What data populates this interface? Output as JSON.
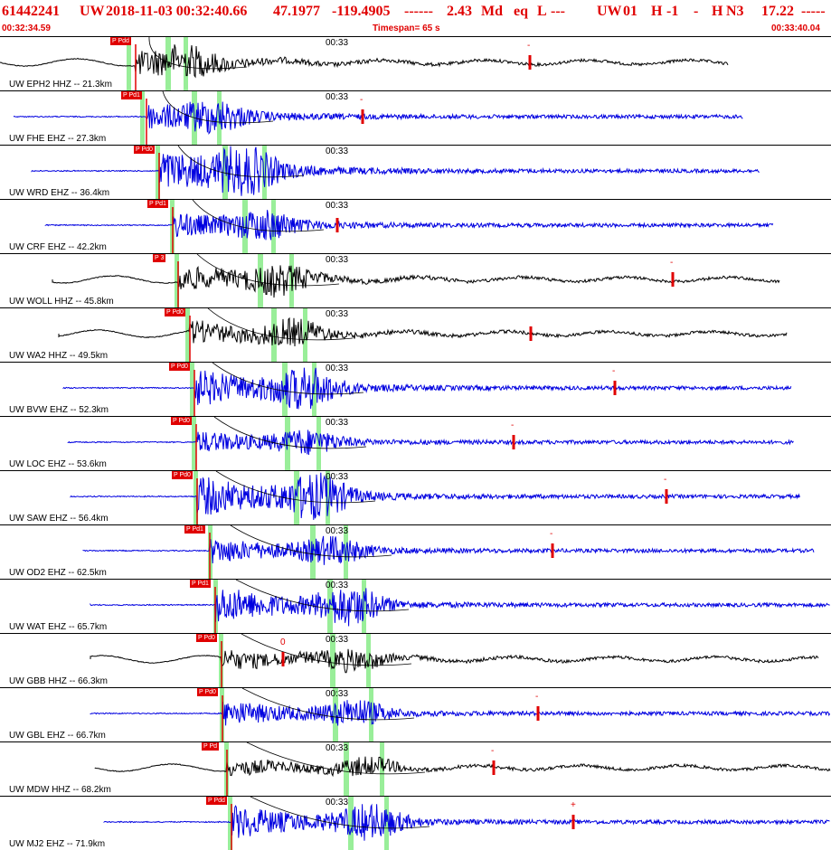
{
  "header": {
    "event_id": "61442241",
    "network": "UW",
    "origin_time": "2018-11-03 00:32:40.66",
    "latitude": "47.1977",
    "longitude": "-119.4905",
    "sep1": "------",
    "magnitude": "2.43",
    "mag_type": "Md",
    "event_type": "eq",
    "geo_type": "L",
    "sep2": "---",
    "source": "UW",
    "version": "01",
    "quality": "H",
    "flag": "-1",
    "sep3": "-",
    "grade": "H",
    "phase_code": "N3",
    "depth": "17.22",
    "sep4": "-----",
    "start_time": "00:32:34.59",
    "timespan": "Timespan=  65 s",
    "end_time": "00:33:40.04"
  },
  "colors": {
    "red": "#e00000",
    "blue": "#0000e0",
    "black": "#000000",
    "green": "#99ee99"
  },
  "panels": [
    {
      "label": "UW EPH2 HHZ -- 21.3km",
      "time": "00:33",
      "pick": "P Pdd",
      "color": "black",
      "amp": 0.7,
      "mark_label": "-"
    },
    {
      "label": "UW FHE EHZ -- 27.3km",
      "time": "00:33",
      "pick": "P Pd1",
      "color": "blue",
      "amp": 0.6,
      "mark_label": "-"
    },
    {
      "label": "UW WRD EHZ -- 36.4km",
      "time": "00:33",
      "pick": "P Pd0",
      "color": "blue",
      "amp": 1.0,
      "mark_label": ""
    },
    {
      "label": "UW CRF EHZ -- 42.2km",
      "time": "00:33",
      "pick": "P Pd1",
      "color": "blue",
      "amp": 0.6,
      "mark_label": ""
    },
    {
      "label": "UW WOLL HHZ -- 45.8km",
      "time": "00:33",
      "pick": "P 3",
      "color": "black",
      "amp": 0.8,
      "mark_label": "-"
    },
    {
      "label": "UW WA2 HHZ -- 49.5km",
      "time": "00:33",
      "pick": "P Pd0",
      "color": "black",
      "amp": 0.7,
      "mark_label": ""
    },
    {
      "label": "UW BVW EHZ -- 52.3km",
      "time": "00:33",
      "pick": "P Pd0",
      "color": "blue",
      "amp": 0.9,
      "mark_label": "-"
    },
    {
      "label": "UW LOC EHZ -- 53.6km",
      "time": "00:33",
      "pick": "P Pd0",
      "color": "blue",
      "amp": 0.5,
      "mark_label": "-"
    },
    {
      "label": "UW SAW EHZ -- 56.4km",
      "time": "00:33",
      "pick": "P Pd0",
      "color": "blue",
      "amp": 1.0,
      "mark_label": "-"
    },
    {
      "label": "UW OD2 EHZ -- 62.5km",
      "time": "00:33",
      "pick": "P Pd1",
      "color": "blue",
      "amp": 0.6,
      "mark_label": "-"
    },
    {
      "label": "UW WAT EHZ -- 65.7km",
      "time": "00:33",
      "pick": "P Pd1",
      "color": "blue",
      "amp": 0.9,
      "mark_label": ""
    },
    {
      "label": "UW GBB HHZ -- 66.3km",
      "time": "00:33",
      "pick": "P Pd0",
      "color": "black",
      "amp": 0.6,
      "mark_label": "0"
    },
    {
      "label": "UW GBL EHZ -- 66.7km",
      "time": "00:33",
      "pick": "P Pd0",
      "color": "blue",
      "amp": 0.6,
      "mark_label": "-"
    },
    {
      "label": "UW MDW HHZ -- 68.2km",
      "time": "00:33",
      "pick": "P Pd",
      "color": "black",
      "amp": 0.5,
      "mark_label": "-"
    },
    {
      "label": "UW MJ2 EHZ -- 71.9km",
      "time": "00:33",
      "pick": "P Pdd",
      "color": "blue",
      "amp": 0.8,
      "mark_label": "+"
    }
  ]
}
